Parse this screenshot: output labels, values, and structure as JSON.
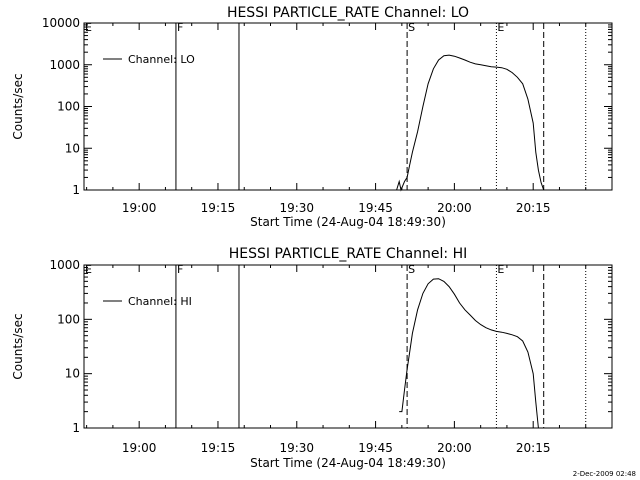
{
  "chart_data": [
    {
      "type": "line",
      "title": "HESSI PARTICLE_RATE Channel: LO",
      "xlabel": "Start Time (24-Aug-04 18:49:30)",
      "ylabel": "Counts/sec",
      "y_scale": "log",
      "ylim": [
        1,
        10000
      ],
      "xlim": [
        "18:49:30",
        "20:30:00"
      ],
      "x_ticks": [
        "19:00",
        "19:15",
        "19:30",
        "19:45",
        "20:00",
        "20:15"
      ],
      "y_ticks": [
        "1",
        "10",
        "100",
        "1000",
        "10000"
      ],
      "legend": {
        "placement": "top-left",
        "label": "Channel: LO"
      },
      "grid": false,
      "markers": [
        {
          "label": "E",
          "time": "18:49:30",
          "style": "solid"
        },
        {
          "label": "F",
          "time": "19:07:00",
          "style": "solid"
        },
        {
          "label": "",
          "time": "19:19:00",
          "style": "solid"
        },
        {
          "label": "S",
          "time": "19:51:00",
          "style": "dashed"
        },
        {
          "label": "E",
          "time": "20:08:00",
          "style": "dotted"
        },
        {
          "label": "",
          "time": "20:17:00",
          "style": "dashed"
        },
        {
          "label": "",
          "time": "20:25:00",
          "style": "dotted"
        }
      ],
      "series": [
        {
          "name": "Channel: LO",
          "x": [
            "19:49:00",
            "19:49:30",
            "19:49:50",
            "19:50:30",
            "19:51:00",
            "19:51:30",
            "19:52:00",
            "19:53:00",
            "19:54:00",
            "19:55:00",
            "19:56:00",
            "19:57:00",
            "19:58:00",
            "19:59:00",
            "20:00:00",
            "20:01:00",
            "20:02:00",
            "20:03:00",
            "20:04:00",
            "20:05:00",
            "20:06:00",
            "20:07:00",
            "20:08:00",
            "20:09:00",
            "20:10:00",
            "20:11:00",
            "20:12:00",
            "20:13:00",
            "20:14:00",
            "20:15:00",
            "20:15:30",
            "20:16:00",
            "20:16:30",
            "20:17:00"
          ],
          "y": [
            1,
            1.6,
            1,
            1.6,
            2,
            4,
            8,
            25,
            100,
            350,
            800,
            1300,
            1650,
            1700,
            1600,
            1450,
            1300,
            1150,
            1050,
            1000,
            950,
            900,
            880,
            850,
            780,
            650,
            500,
            350,
            150,
            40,
            8,
            3,
            1.5,
            1
          ]
        }
      ]
    },
    {
      "type": "line",
      "title": "HESSI PARTICLE_RATE Channel: HI",
      "xlabel": "Start Time (24-Aug-04 18:49:30)",
      "ylabel": "Counts/sec",
      "y_scale": "log",
      "ylim": [
        1,
        1000
      ],
      "xlim": [
        "18:49:30",
        "20:30:00"
      ],
      "x_ticks": [
        "19:00",
        "19:15",
        "19:30",
        "19:45",
        "20:00",
        "20:15"
      ],
      "y_ticks": [
        "1",
        "10",
        "100",
        "1000"
      ],
      "legend": {
        "placement": "top-left",
        "label": "Channel: HI"
      },
      "grid": false,
      "markers": [
        {
          "label": "E",
          "time": "18:49:30",
          "style": "solid"
        },
        {
          "label": "F",
          "time": "19:07:00",
          "style": "solid"
        },
        {
          "label": "",
          "time": "19:19:00",
          "style": "solid"
        },
        {
          "label": "S",
          "time": "19:51:00",
          "style": "dashed"
        },
        {
          "label": "E",
          "time": "20:08:00",
          "style": "dotted"
        },
        {
          "label": "",
          "time": "20:17:00",
          "style": "dashed"
        },
        {
          "label": "",
          "time": "20:25:00",
          "style": "dotted"
        }
      ],
      "series": [
        {
          "name": "Channel: HI",
          "x": [
            "19:49:30",
            "19:50:00",
            "19:50:30",
            "19:51:00",
            "19:51:30",
            "19:52:00",
            "19:53:00",
            "19:54:00",
            "19:55:00",
            "19:56:00",
            "19:57:00",
            "19:58:00",
            "19:59:00",
            "20:00:00",
            "20:01:00",
            "20:02:00",
            "20:03:00",
            "20:04:00",
            "20:05:00",
            "20:06:00",
            "20:07:00",
            "20:08:00",
            "20:09:00",
            "20:10:00",
            "20:11:00",
            "20:12:00",
            "20:13:00",
            "20:14:00",
            "20:15:00",
            "20:15:30",
            "20:16:00"
          ],
          "y": [
            2,
            2,
            5,
            12,
            25,
            55,
            150,
            300,
            450,
            550,
            560,
            500,
            400,
            290,
            200,
            150,
            120,
            95,
            80,
            70,
            64,
            60,
            58,
            55,
            52,
            48,
            40,
            25,
            10,
            3,
            1
          ]
        }
      ]
    }
  ],
  "footer": {
    "timestamp": "2-Dec-2009 02:48"
  }
}
